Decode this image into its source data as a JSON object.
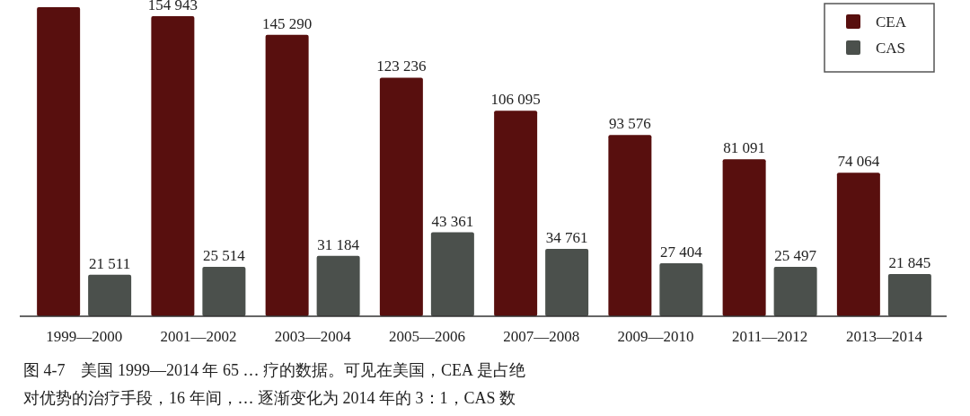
{
  "chart_data": {
    "type": "bar",
    "categories": [
      "1999—2000",
      "2001—2002",
      "2003—2004",
      "2005—2006",
      "2007—2008",
      "2009—2010",
      "2011—2012",
      "2013—2014"
    ],
    "series": [
      {
        "name": "CEA",
        "color": "#580f0e",
        "values": [
          159600,
          154943,
          145290,
          123236,
          106095,
          93576,
          81091,
          74064
        ],
        "value_labels": [
          null,
          "154 943",
          "145 290",
          "123 236",
          "106 095",
          "93 576",
          "81 091",
          "74 064"
        ]
      },
      {
        "name": "CAS",
        "color": "#4b504c",
        "values": [
          21511,
          25514,
          31184,
          43361,
          34761,
          27404,
          25497,
          21845
        ],
        "value_labels": [
          "21 511",
          "25 514",
          "31 184",
          "43 361",
          "34 761",
          "27 404",
          "25 497",
          "21 845"
        ]
      }
    ],
    "legend": "top right",
    "annotations": [
      "图 4-7　美国 1999—2014 年 65 … 疗的数据。可见在美国，CEA 是占绝",
      "对优势的治疗手段，16 年间，… 逐渐变化为 2014 年的 3：1，CAS 数"
    ]
  }
}
